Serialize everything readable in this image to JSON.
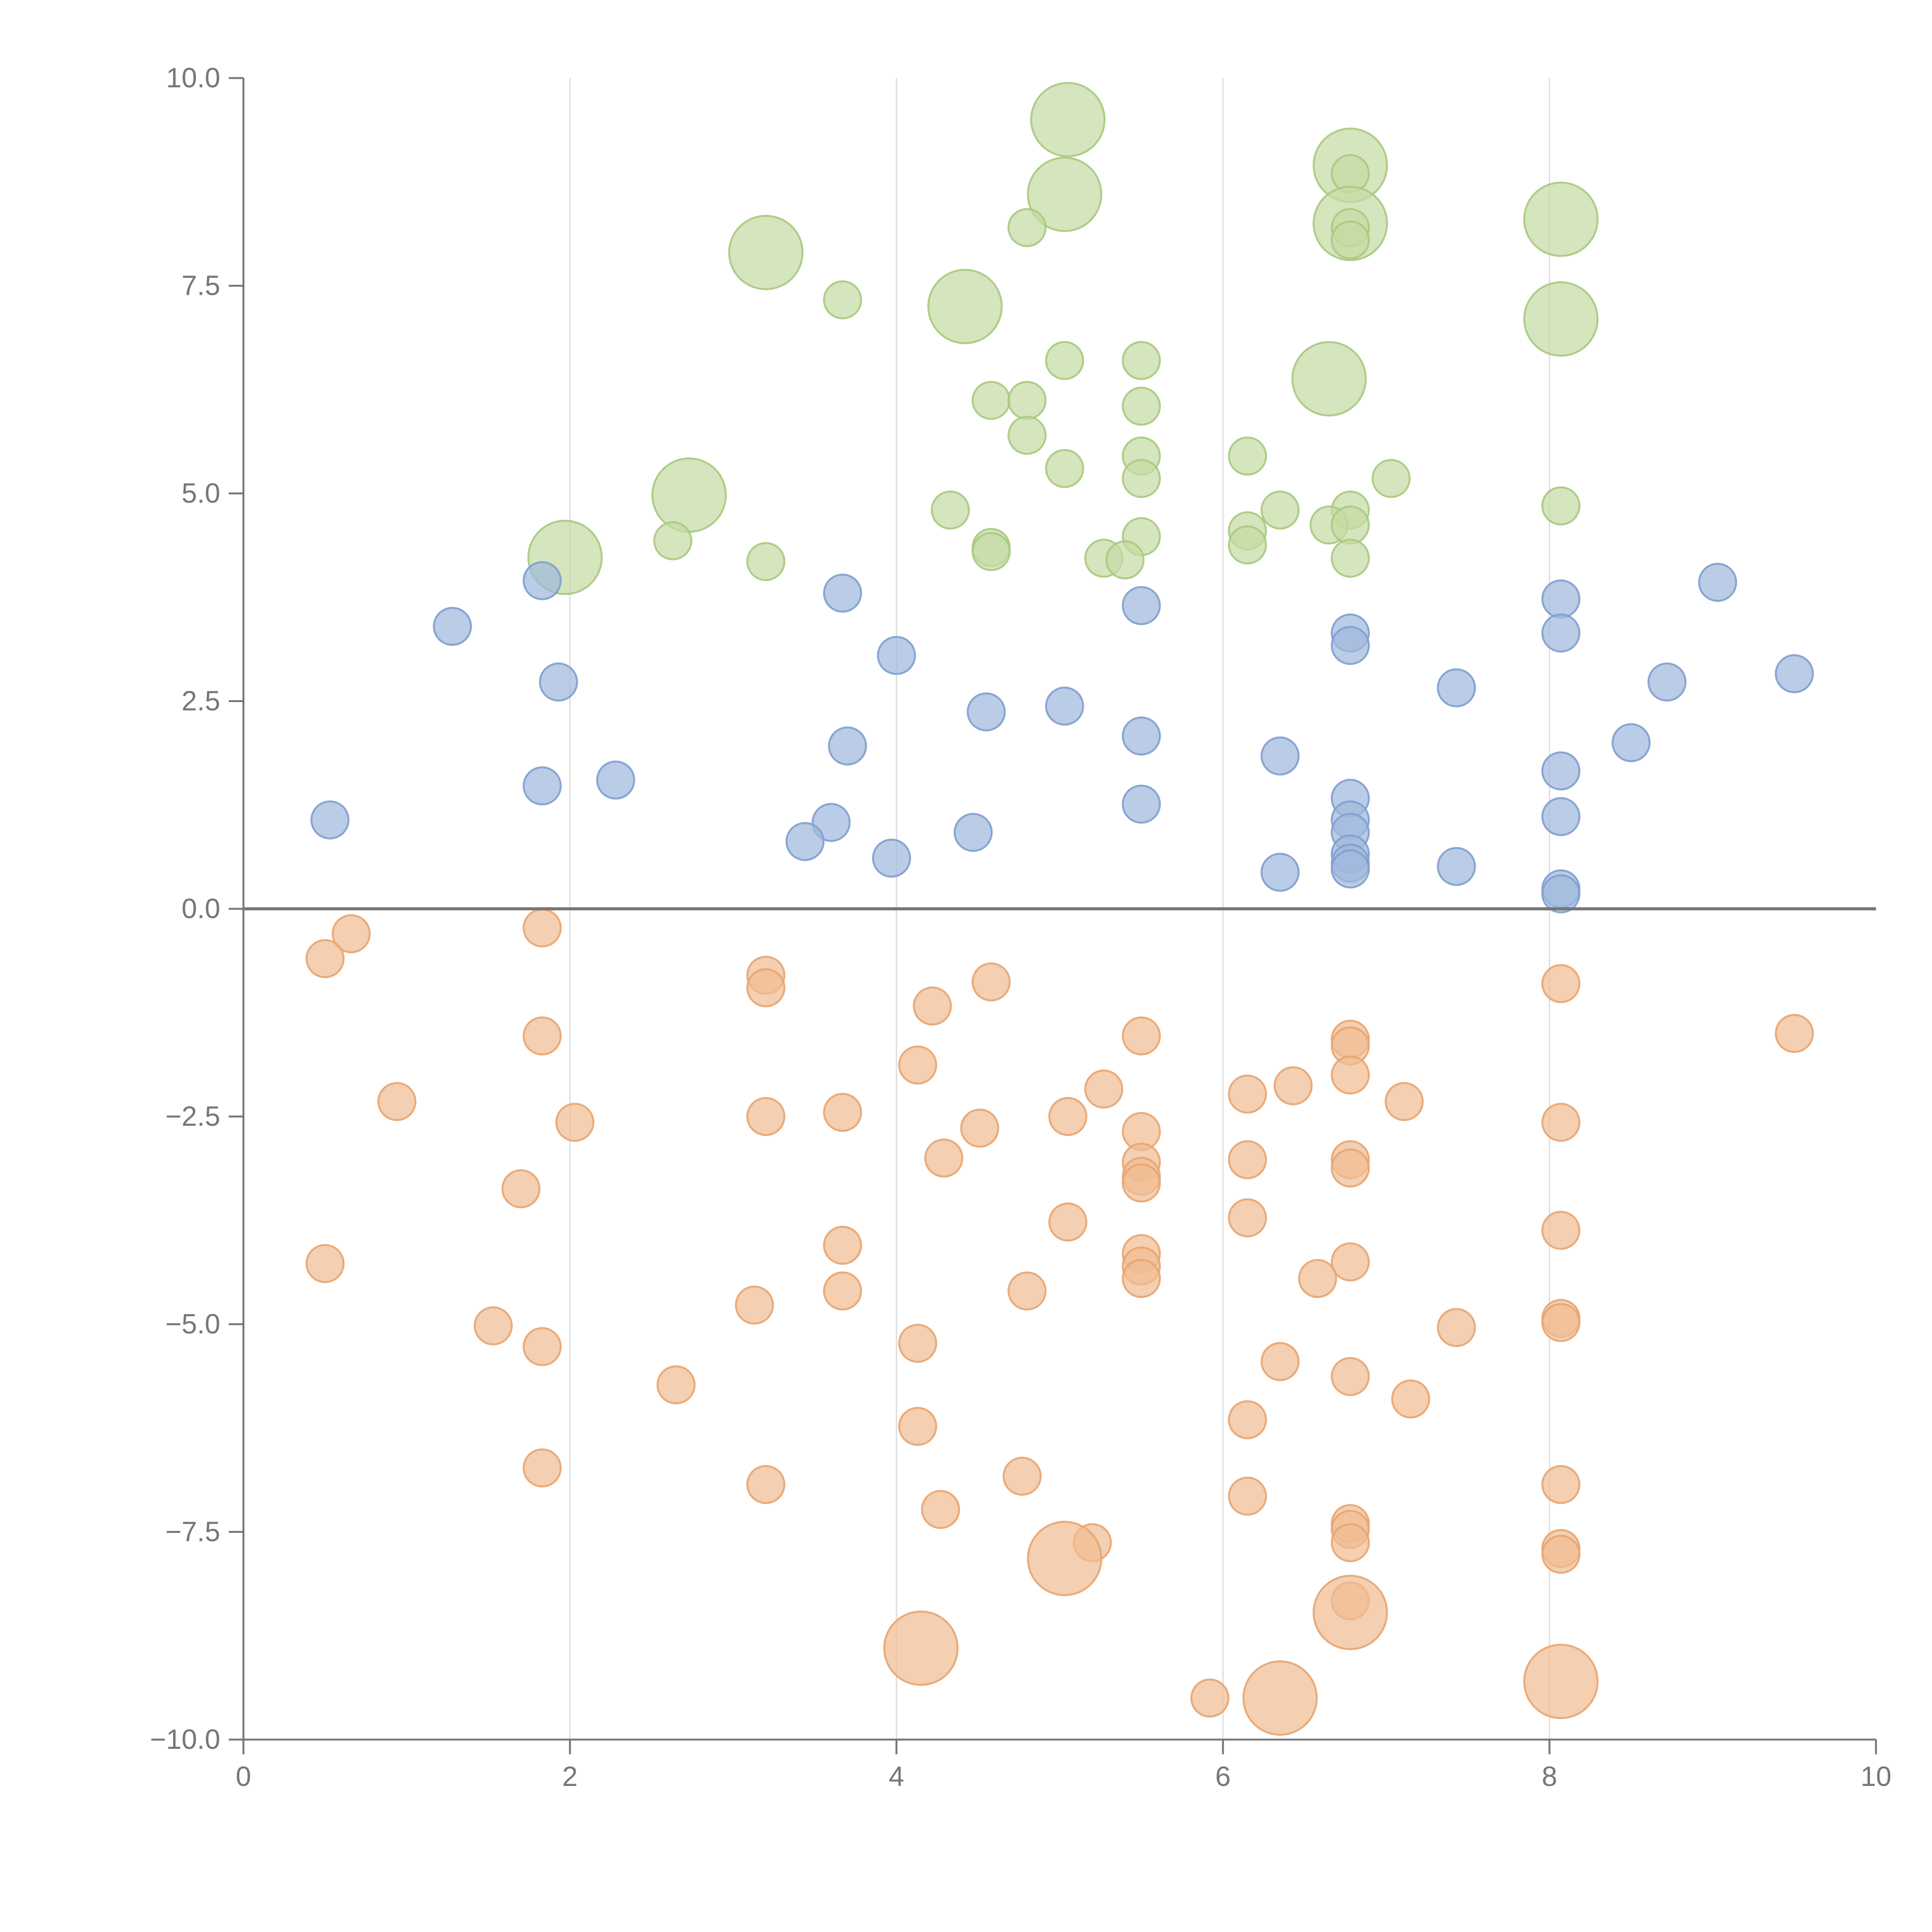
{
  "chart_data": {
    "type": "scatter",
    "title": "",
    "xlabel": "",
    "ylabel": "",
    "xlim": [
      0,
      10
    ],
    "ylim": [
      -10,
      10
    ],
    "x_ticks": [
      0,
      2,
      4,
      6,
      8,
      10
    ],
    "x_tick_labels": [
      "0",
      "2",
      "4",
      "6",
      "8",
      "10"
    ],
    "y_ticks": [
      10,
      7.5,
      5,
      2.5,
      0,
      -2.5,
      -5,
      -7.5,
      -10
    ],
    "y_tick_labels": [
      "10.0",
      "7.5",
      "5.0",
      "2.5",
      "0.0",
      "−2.5",
      "−5.0",
      "−7.5",
      "−10.0"
    ],
    "grid": {
      "vertical": true,
      "horizontal": false
    },
    "legend": "none",
    "colors": {
      "green_fill": "#c5dba4",
      "green_stroke": "#a9c97f",
      "blue_fill": "#9fb8dd",
      "blue_stroke": "#7f9fcf",
      "orange_fill": "#f0bd93",
      "orange_stroke": "#e8a470",
      "axis": "#777777",
      "grid": "#d9d9d9"
    },
    "series": [
      {
        "color": "green",
        "points": [
          {
            "x": 5.05,
            "y": 9.5,
            "size": 2
          },
          {
            "x": 6.78,
            "y": 8.95,
            "size": 2
          },
          {
            "x": 6.78,
            "y": 8.85,
            "size": 1
          },
          {
            "x": 5.03,
            "y": 8.6,
            "size": 2
          },
          {
            "x": 8.07,
            "y": 8.3,
            "size": 2
          },
          {
            "x": 6.78,
            "y": 8.25,
            "size": 2
          },
          {
            "x": 4.8,
            "y": 8.2,
            "size": 1
          },
          {
            "x": 6.78,
            "y": 8.2,
            "size": 1
          },
          {
            "x": 6.78,
            "y": 8.05,
            "size": 1
          },
          {
            "x": 3.2,
            "y": 7.9,
            "size": 2
          },
          {
            "x": 3.67,
            "y": 7.33,
            "size": 1
          },
          {
            "x": 4.42,
            "y": 7.25,
            "size": 2
          },
          {
            "x": 8.07,
            "y": 7.1,
            "size": 2
          },
          {
            "x": 5.03,
            "y": 6.6,
            "size": 1
          },
          {
            "x": 5.5,
            "y": 6.6,
            "size": 1
          },
          {
            "x": 6.65,
            "y": 6.38,
            "size": 2
          },
          {
            "x": 4.58,
            "y": 6.12,
            "size": 1
          },
          {
            "x": 4.8,
            "y": 6.12,
            "size": 1
          },
          {
            "x": 5.5,
            "y": 6.05,
            "size": 1
          },
          {
            "x": 4.8,
            "y": 5.7,
            "size": 1
          },
          {
            "x": 6.15,
            "y": 5.45,
            "size": 1
          },
          {
            "x": 5.5,
            "y": 5.45,
            "size": 1
          },
          {
            "x": 5.03,
            "y": 5.3,
            "size": 1
          },
          {
            "x": 5.5,
            "y": 5.18,
            "size": 1
          },
          {
            "x": 7.03,
            "y": 5.18,
            "size": 1
          },
          {
            "x": 2.73,
            "y": 4.98,
            "size": 2
          },
          {
            "x": 8.07,
            "y": 4.85,
            "size": 1
          },
          {
            "x": 4.33,
            "y": 4.8,
            "size": 1
          },
          {
            "x": 6.35,
            "y": 4.8,
            "size": 1
          },
          {
            "x": 6.78,
            "y": 4.8,
            "size": 1
          },
          {
            "x": 6.65,
            "y": 4.62,
            "size": 1
          },
          {
            "x": 6.78,
            "y": 4.62,
            "size": 1
          },
          {
            "x": 6.15,
            "y": 4.55,
            "size": 1
          },
          {
            "x": 5.5,
            "y": 4.48,
            "size": 1
          },
          {
            "x": 2.63,
            "y": 4.43,
            "size": 1
          },
          {
            "x": 6.15,
            "y": 4.38,
            "size": 1
          },
          {
            "x": 4.58,
            "y": 4.35,
            "size": 1
          },
          {
            "x": 4.58,
            "y": 4.3,
            "size": 1
          },
          {
            "x": 1.97,
            "y": 4.23,
            "size": 2
          },
          {
            "x": 5.27,
            "y": 4.22,
            "size": 1
          },
          {
            "x": 5.4,
            "y": 4.2,
            "size": 1
          },
          {
            "x": 6.78,
            "y": 4.22,
            "size": 1
          },
          {
            "x": 3.2,
            "y": 4.18,
            "size": 1
          }
        ]
      },
      {
        "color": "blue",
        "points": [
          {
            "x": 1.83,
            "y": 3.95,
            "size": 1
          },
          {
            "x": 9.03,
            "y": 3.93,
            "size": 1
          },
          {
            "x": 3.67,
            "y": 3.8,
            "size": 1
          },
          {
            "x": 8.07,
            "y": 3.73,
            "size": 1
          },
          {
            "x": 5.5,
            "y": 3.65,
            "size": 1
          },
          {
            "x": 1.28,
            "y": 3.4,
            "size": 1
          },
          {
            "x": 6.78,
            "y": 3.32,
            "size": 1
          },
          {
            "x": 8.07,
            "y": 3.32,
            "size": 1
          },
          {
            "x": 6.78,
            "y": 3.17,
            "size": 1
          },
          {
            "x": 4.0,
            "y": 3.05,
            "size": 1
          },
          {
            "x": 9.5,
            "y": 2.83,
            "size": 1
          },
          {
            "x": 1.93,
            "y": 2.73,
            "size": 1
          },
          {
            "x": 8.72,
            "y": 2.73,
            "size": 1
          },
          {
            "x": 7.43,
            "y": 2.66,
            "size": 1
          },
          {
            "x": 5.03,
            "y": 2.44,
            "size": 1
          },
          {
            "x": 4.55,
            "y": 2.37,
            "size": 1
          },
          {
            "x": 5.5,
            "y": 2.08,
            "size": 1
          },
          {
            "x": 8.5,
            "y": 2.0,
            "size": 1
          },
          {
            "x": 3.7,
            "y": 1.96,
            "size": 1
          },
          {
            "x": 6.35,
            "y": 1.84,
            "size": 1
          },
          {
            "x": 8.07,
            "y": 1.66,
            "size": 1
          },
          {
            "x": 2.28,
            "y": 1.55,
            "size": 1
          },
          {
            "x": 1.83,
            "y": 1.48,
            "size": 1
          },
          {
            "x": 6.78,
            "y": 1.33,
            "size": 1
          },
          {
            "x": 5.5,
            "y": 1.26,
            "size": 1
          },
          {
            "x": 8.07,
            "y": 1.11,
            "size": 1
          },
          {
            "x": 0.53,
            "y": 1.07,
            "size": 1
          },
          {
            "x": 6.78,
            "y": 1.07,
            "size": 1
          },
          {
            "x": 3.6,
            "y": 1.04,
            "size": 1
          },
          {
            "x": 4.47,
            "y": 0.92,
            "size": 1
          },
          {
            "x": 6.78,
            "y": 0.92,
            "size": 1
          },
          {
            "x": 3.44,
            "y": 0.81,
            "size": 1
          },
          {
            "x": 6.78,
            "y": 0.66,
            "size": 1
          },
          {
            "x": 3.97,
            "y": 0.61,
            "size": 1
          },
          {
            "x": 6.78,
            "y": 0.55,
            "size": 1
          },
          {
            "x": 7.43,
            "y": 0.51,
            "size": 1
          },
          {
            "x": 6.78,
            "y": 0.48,
            "size": 1
          },
          {
            "x": 6.35,
            "y": 0.44,
            "size": 1
          },
          {
            "x": 8.07,
            "y": 0.24,
            "size": 1
          },
          {
            "x": 8.07,
            "y": 0.18,
            "size": 1
          }
        ]
      },
      {
        "color": "orange",
        "points": [
          {
            "x": 1.83,
            "y": -0.23,
            "size": 1
          },
          {
            "x": 0.66,
            "y": -0.3,
            "size": 1
          },
          {
            "x": 0.5,
            "y": -0.6,
            "size": 1
          },
          {
            "x": 3.2,
            "y": -0.8,
            "size": 1
          },
          {
            "x": 3.2,
            "y": -0.95,
            "size": 1
          },
          {
            "x": 4.58,
            "y": -0.88,
            "size": 1
          },
          {
            "x": 8.07,
            "y": -0.9,
            "size": 1
          },
          {
            "x": 4.22,
            "y": -1.17,
            "size": 1
          },
          {
            "x": 9.5,
            "y": -1.5,
            "size": 1
          },
          {
            "x": 1.83,
            "y": -1.53,
            "size": 1
          },
          {
            "x": 5.5,
            "y": -1.53,
            "size": 1
          },
          {
            "x": 6.78,
            "y": -1.57,
            "size": 1
          },
          {
            "x": 6.78,
            "y": -1.65,
            "size": 1
          },
          {
            "x": 4.13,
            "y": -1.88,
            "size": 1
          },
          {
            "x": 6.78,
            "y": -2.0,
            "size": 1
          },
          {
            "x": 6.43,
            "y": -2.13,
            "size": 1
          },
          {
            "x": 5.27,
            "y": -2.17,
            "size": 1
          },
          {
            "x": 6.15,
            "y": -2.23,
            "size": 1
          },
          {
            "x": 0.94,
            "y": -2.32,
            "size": 1
          },
          {
            "x": 7.11,
            "y": -2.32,
            "size": 1
          },
          {
            "x": 3.67,
            "y": -2.45,
            "size": 1
          },
          {
            "x": 3.2,
            "y": -2.5,
            "size": 1
          },
          {
            "x": 5.05,
            "y": -2.5,
            "size": 1
          },
          {
            "x": 2.03,
            "y": -2.57,
            "size": 1
          },
          {
            "x": 8.07,
            "y": -2.57,
            "size": 1
          },
          {
            "x": 4.51,
            "y": -2.64,
            "size": 1
          },
          {
            "x": 5.5,
            "y": -2.68,
            "size": 1
          },
          {
            "x": 4.29,
            "y": -3.0,
            "size": 1
          },
          {
            "x": 6.15,
            "y": -3.02,
            "size": 1
          },
          {
            "x": 6.78,
            "y": -3.02,
            "size": 1
          },
          {
            "x": 5.5,
            "y": -3.05,
            "size": 1
          },
          {
            "x": 6.78,
            "y": -3.12,
            "size": 1
          },
          {
            "x": 5.5,
            "y": -3.22,
            "size": 1
          },
          {
            "x": 5.5,
            "y": -3.3,
            "size": 1
          },
          {
            "x": 1.7,
            "y": -3.37,
            "size": 1
          },
          {
            "x": 6.15,
            "y": -3.72,
            "size": 1
          },
          {
            "x": 5.05,
            "y": -3.77,
            "size": 1
          },
          {
            "x": 8.07,
            "y": -3.87,
            "size": 1
          },
          {
            "x": 3.67,
            "y": -4.05,
            "size": 1
          },
          {
            "x": 5.5,
            "y": -4.15,
            "size": 1
          },
          {
            "x": 6.78,
            "y": -4.25,
            "size": 1
          },
          {
            "x": 5.5,
            "y": -4.3,
            "size": 1
          },
          {
            "x": 0.5,
            "y": -4.27,
            "size": 1
          },
          {
            "x": 6.58,
            "y": -4.45,
            "size": 1
          },
          {
            "x": 5.5,
            "y": -4.45,
            "size": 1
          },
          {
            "x": 3.67,
            "y": -4.6,
            "size": 1
          },
          {
            "x": 4.8,
            "y": -4.6,
            "size": 1
          },
          {
            "x": 3.13,
            "y": -4.77,
            "size": 1
          },
          {
            "x": 8.07,
            "y": -4.93,
            "size": 1
          },
          {
            "x": 8.07,
            "y": -4.98,
            "size": 1
          },
          {
            "x": 1.53,
            "y": -5.02,
            "size": 1
          },
          {
            "x": 7.43,
            "y": -5.04,
            "size": 1
          },
          {
            "x": 4.13,
            "y": -5.23,
            "size": 1
          },
          {
            "x": 1.83,
            "y": -5.27,
            "size": 1
          },
          {
            "x": 6.35,
            "y": -5.45,
            "size": 1
          },
          {
            "x": 6.78,
            "y": -5.63,
            "size": 1
          },
          {
            "x": 2.65,
            "y": -5.73,
            "size": 1
          },
          {
            "x": 7.15,
            "y": -5.9,
            "size": 1
          },
          {
            "x": 6.15,
            "y": -6.15,
            "size": 1
          },
          {
            "x": 4.13,
            "y": -6.23,
            "size": 1
          },
          {
            "x": 1.83,
            "y": -6.73,
            "size": 1
          },
          {
            "x": 4.77,
            "y": -6.83,
            "size": 1
          },
          {
            "x": 3.2,
            "y": -6.93,
            "size": 1
          },
          {
            "x": 8.07,
            "y": -6.93,
            "size": 1
          },
          {
            "x": 6.15,
            "y": -7.07,
            "size": 1
          },
          {
            "x": 4.27,
            "y": -7.23,
            "size": 1
          },
          {
            "x": 6.78,
            "y": -7.4,
            "size": 1
          },
          {
            "x": 6.78,
            "y": -7.47,
            "size": 1
          },
          {
            "x": 5.2,
            "y": -7.63,
            "size": 1
          },
          {
            "x": 6.78,
            "y": -7.63,
            "size": 1
          },
          {
            "x": 8.07,
            "y": -7.7,
            "size": 1
          },
          {
            "x": 8.07,
            "y": -7.77,
            "size": 1
          },
          {
            "x": 5.03,
            "y": -7.82,
            "size": 2
          },
          {
            "x": 6.78,
            "y": -8.33,
            "size": 1
          },
          {
            "x": 6.78,
            "y": -8.47,
            "size": 2
          },
          {
            "x": 4.15,
            "y": -8.9,
            "size": 2
          },
          {
            "x": 8.07,
            "y": -9.3,
            "size": 2
          },
          {
            "x": 5.92,
            "y": -9.5,
            "size": 1
          },
          {
            "x": 6.35,
            "y": -9.5,
            "size": 2
          }
        ]
      }
    ]
  }
}
